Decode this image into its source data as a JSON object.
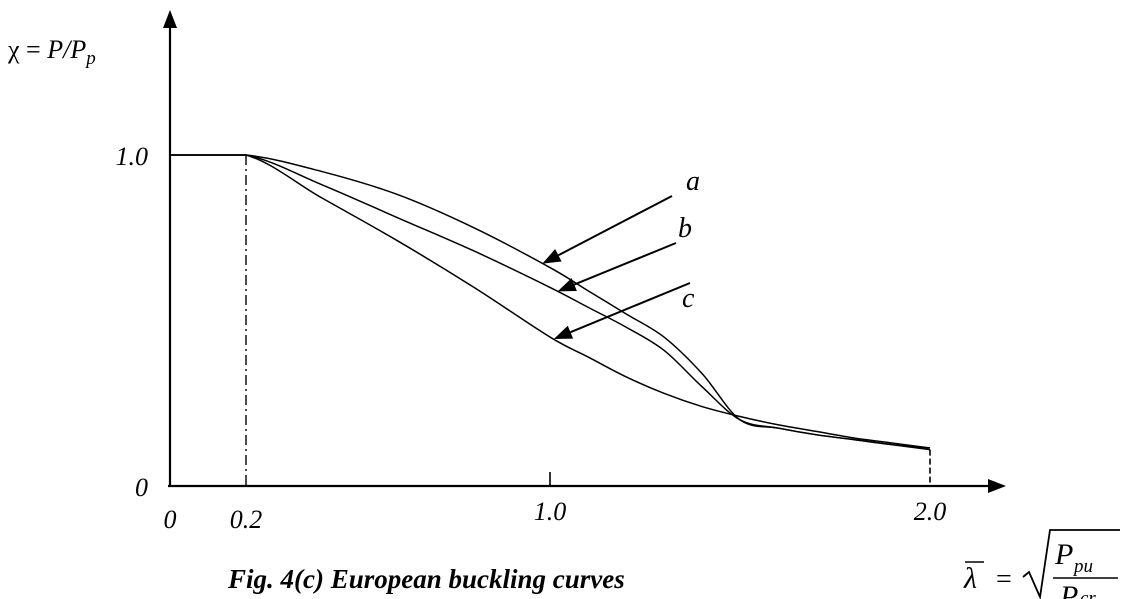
{
  "chart_data": {
    "type": "line",
    "title": "Fig. 4(c) European buckling curves",
    "ylabel_parts": {
      "chi": "χ",
      "eq": " = ",
      "P": "P",
      "slash": "/P",
      "sub_p": "p"
    },
    "xlabel_parts": {
      "lambda": "λ",
      "eq": "=",
      "num": "P",
      "num_sub": "pu",
      "den": "P",
      "den_sub": "cr"
    },
    "x_ticks": [
      {
        "value": 0,
        "label": "0"
      },
      {
        "value": 0.2,
        "label": "0.2"
      },
      {
        "value": 1.0,
        "label": "1.0"
      },
      {
        "value": 2.0,
        "label": "2.0"
      }
    ],
    "y_ticks": [
      {
        "value": 0,
        "label": "0"
      },
      {
        "value": 1.0,
        "label": "1.0"
      }
    ],
    "xlim": [
      0,
      2.4
    ],
    "ylim": [
      0,
      1.2
    ],
    "series": [
      {
        "name": "a",
        "x": [
          0,
          0.2,
          0.4,
          0.6,
          0.8,
          1.0,
          1.1,
          1.2,
          1.3,
          1.4,
          1.5,
          1.6,
          1.7,
          1.8,
          1.9,
          2.0
        ],
        "y": [
          1.0,
          1.0,
          0.95,
          0.88,
          0.78,
          0.66,
          0.59,
          0.52,
          0.45,
          0.34,
          0.2,
          0.175,
          0.155,
          0.14,
          0.125,
          0.115
        ]
      },
      {
        "name": "b",
        "x": [
          0,
          0.2,
          0.4,
          0.6,
          0.8,
          1.0,
          1.1,
          1.2,
          1.3,
          1.4,
          1.5,
          1.6,
          1.7,
          1.8,
          1.9,
          2.0
        ],
        "y": [
          1.0,
          1.0,
          0.91,
          0.81,
          0.71,
          0.6,
          0.54,
          0.48,
          0.41,
          0.3,
          0.2,
          0.175,
          0.155,
          0.14,
          0.125,
          0.11
        ]
      },
      {
        "name": "c",
        "x": [
          0,
          0.2,
          0.4,
          0.6,
          0.8,
          1.0,
          1.1,
          1.2,
          1.3,
          1.4,
          1.5,
          1.6,
          1.7,
          1.8,
          1.9,
          2.0
        ],
        "y": [
          1.0,
          1.0,
          0.87,
          0.74,
          0.6,
          0.45,
          0.39,
          0.33,
          0.28,
          0.24,
          0.21,
          0.185,
          0.165,
          0.145,
          0.13,
          0.115
        ]
      }
    ],
    "curve_labels": [
      {
        "name": "a",
        "text": "a"
      },
      {
        "name": "b",
        "text": "b"
      },
      {
        "name": "c",
        "text": "c"
      }
    ],
    "reference_line": {
      "x": 0.2,
      "style": "dash-dot"
    },
    "grid": false,
    "legend": "none"
  }
}
